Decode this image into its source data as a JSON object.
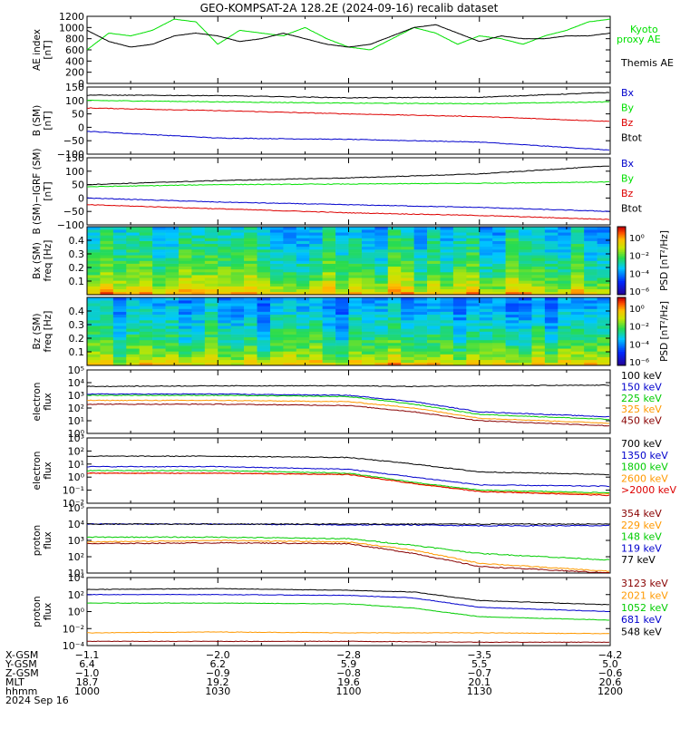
{
  "title": "GEO-KOMPSAT-2A 128.2E (2024-09-16) recalib dataset",
  "chart_data": [
    {
      "type": "line",
      "ylabel": "AE index [nT]",
      "yticks": [
        "0",
        "200",
        "400",
        "600",
        "800",
        "1000",
        "1200"
      ],
      "ylim": [
        0,
        1200
      ],
      "series": [
        {
          "name": "Kyoto proxy AE",
          "label_lines": [
            "Kyoto",
            "proxy AE"
          ],
          "color": "#00e000",
          "x": [
            1000,
            1005,
            1010,
            1015,
            1020,
            1025,
            1030,
            1035,
            1040,
            1045,
            1050,
            1055,
            1100,
            1105,
            1110,
            1115,
            1120,
            1125,
            1130,
            1135,
            1140,
            1145,
            1150,
            1155,
            1200
          ],
          "values": [
            600,
            900,
            850,
            950,
            1150,
            1100,
            700,
            950,
            900,
            850,
            1000,
            800,
            650,
            600,
            800,
            1000,
            900,
            700,
            850,
            800,
            700,
            850,
            950,
            1100,
            1150
          ]
        },
        {
          "name": "Themis AE",
          "color": "#000000",
          "x": [
            1000,
            1005,
            1010,
            1015,
            1020,
            1025,
            1030,
            1035,
            1040,
            1045,
            1050,
            1055,
            1100,
            1105,
            1110,
            1115,
            1120,
            1125,
            1130,
            1135,
            1140,
            1145,
            1150,
            1155,
            1200
          ],
          "values": [
            950,
            750,
            650,
            700,
            850,
            900,
            850,
            750,
            800,
            900,
            800,
            700,
            650,
            700,
            850,
            1000,
            1050,
            900,
            750,
            850,
            800,
            800,
            850,
            850,
            900
          ]
        }
      ]
    },
    {
      "type": "line",
      "ylabel": "B (SM) [nT]",
      "yticks": [
        "−100",
        "−50",
        "0",
        "50",
        "100",
        "150"
      ],
      "ylim": [
        -100,
        150
      ],
      "series": [
        {
          "name": "Bx",
          "color": "#0000cc",
          "x": [
            1000,
            1030,
            1100,
            1130,
            1200
          ],
          "values": [
            -15,
            -40,
            -45,
            -55,
            -85
          ]
        },
        {
          "name": "By",
          "color": "#00e000",
          "x": [
            1000,
            1030,
            1100,
            1130,
            1200
          ],
          "values": [
            100,
            95,
            90,
            88,
            95
          ]
        },
        {
          "name": "Bz",
          "color": "#dd0000",
          "x": [
            1000,
            1030,
            1100,
            1130,
            1200
          ],
          "values": [
            72,
            62,
            50,
            40,
            22
          ]
        },
        {
          "name": "Btot",
          "color": "#000000",
          "x": [
            1000,
            1030,
            1100,
            1130,
            1200
          ],
          "values": [
            120,
            118,
            110,
            112,
            130
          ]
        }
      ]
    },
    {
      "type": "line",
      "ylabel": "B (SM)−IGRF (SM) [nT]",
      "yticks": [
        "−100",
        "−50",
        "0",
        "50",
        "100",
        "150"
      ],
      "ylim": [
        -100,
        150
      ],
      "series": [
        {
          "name": "Bx",
          "color": "#0000cc",
          "x": [
            1000,
            1030,
            1100,
            1130,
            1200
          ],
          "values": [
            0,
            -15,
            -25,
            -35,
            -50
          ]
        },
        {
          "name": "By",
          "color": "#00e000",
          "x": [
            1000,
            1030,
            1100,
            1130,
            1200
          ],
          "values": [
            42,
            50,
            52,
            55,
            60
          ]
        },
        {
          "name": "Bz",
          "color": "#dd0000",
          "x": [
            1000,
            1030,
            1100,
            1130,
            1200
          ],
          "values": [
            -25,
            -40,
            -55,
            -65,
            -80
          ]
        },
        {
          "name": "Btot",
          "color": "#000000",
          "x": [
            1000,
            1030,
            1100,
            1130,
            1200
          ],
          "values": [
            50,
            65,
            75,
            90,
            120
          ]
        }
      ]
    },
    {
      "type": "heatmap",
      "ylabel": "Bx (SM) freq [Hz]",
      "yticks": [
        "0.1",
        "0.2",
        "0.3",
        "0.4"
      ],
      "ylim": [
        0,
        0.5
      ],
      "colorbar_label": "PSD [nT²/Hz]",
      "colorbar_ticks": [
        "10⁰",
        "10⁻²",
        "10⁻⁴",
        "10⁻⁶"
      ]
    },
    {
      "type": "heatmap",
      "ylabel": "Bz (SM) freq [Hz]",
      "yticks": [
        "0.1",
        "0.2",
        "0.3",
        "0.4"
      ],
      "ylim": [
        0,
        0.5
      ],
      "colorbar_label": "PSD [nT²/Hz]",
      "colorbar_ticks": [
        "10⁰",
        "10⁻²",
        "10⁻⁴",
        "10⁻⁶"
      ]
    },
    {
      "type": "line",
      "log": true,
      "ylabel": "electron flux",
      "yticks": [
        "10⁰",
        "10¹",
        "10²",
        "10³",
        "10⁴",
        "10⁵"
      ],
      "ylim_exp": [
        0,
        5
      ],
      "series": [
        {
          "name": "100 keV",
          "color": "#000000",
          "x": [
            1000,
            1030,
            1100,
            1115,
            1130,
            1200
          ],
          "values_log10": [
            3.7,
            3.75,
            3.75,
            3.7,
            3.75,
            3.8
          ]
        },
        {
          "name": "150 keV",
          "color": "#0000cc",
          "x": [
            1000,
            1030,
            1100,
            1115,
            1130,
            1200
          ],
          "values_log10": [
            3.1,
            3.1,
            3.0,
            2.5,
            1.7,
            1.3
          ]
        },
        {
          "name": "225 keV",
          "color": "#00cc00",
          "x": [
            1000,
            1030,
            1100,
            1115,
            1130,
            1200
          ],
          "values_log10": [
            3.0,
            3.0,
            2.9,
            2.3,
            1.5,
            1.1
          ]
        },
        {
          "name": "325 keV",
          "color": "#ff9900",
          "x": [
            1000,
            1030,
            1100,
            1115,
            1130,
            1200
          ],
          "values_log10": [
            2.6,
            2.6,
            2.5,
            2.0,
            1.2,
            0.8
          ]
        },
        {
          "name": "450 keV",
          "color": "#880000",
          "x": [
            1000,
            1030,
            1100,
            1115,
            1130,
            1200
          ],
          "values_log10": [
            2.3,
            2.3,
            2.2,
            1.7,
            1.0,
            0.6
          ]
        }
      ]
    },
    {
      "type": "line",
      "log": true,
      "ylabel": "electron flux",
      "yticks": [
        "10⁻²",
        "10⁻¹",
        "10⁰",
        "10¹",
        "10²",
        "10³"
      ],
      "ylim_exp": [
        -2,
        3
      ],
      "series": [
        {
          "name": "700 keV",
          "color": "#000000",
          "x": [
            1000,
            1030,
            1100,
            1115,
            1130,
            1200
          ],
          "values_log10": [
            1.6,
            1.6,
            1.5,
            1.0,
            0.4,
            0.2
          ]
        },
        {
          "name": "1350 keV",
          "color": "#0000cc",
          "x": [
            1000,
            1030,
            1100,
            1115,
            1130,
            1200
          ],
          "values_log10": [
            0.8,
            0.8,
            0.6,
            0.0,
            -0.6,
            -0.7
          ]
        },
        {
          "name": "1800 keV",
          "color": "#00cc00",
          "x": [
            1000,
            1030,
            1100,
            1115,
            1130,
            1200
          ],
          "values_log10": [
            0.5,
            0.5,
            0.3,
            -0.4,
            -1.0,
            -1.2
          ]
        },
        {
          "name": "2600 keV",
          "color": "#ff9900",
          "x": [
            1000,
            1030,
            1100,
            1115,
            1130,
            1200
          ],
          "values_log10": [
            0.3,
            0.3,
            0.2,
            -0.5,
            -1.1,
            -1.3
          ]
        },
        {
          "name": ">2000 keV",
          "color": "#dd0000",
          "x": [
            1000,
            1030,
            1100,
            1115,
            1130,
            1200
          ],
          "values_log10": [
            0.3,
            0.3,
            0.2,
            -0.5,
            -1.1,
            -1.4
          ]
        }
      ]
    },
    {
      "type": "line",
      "log": true,
      "ylabel": "proton flux",
      "yticks": [
        "10¹",
        "10²",
        "10³",
        "10⁴",
        "10⁵"
      ],
      "ylim_exp": [
        1,
        5
      ],
      "series": [
        {
          "name": "354 keV",
          "color": "#880000",
          "x": [
            1000,
            1030,
            1100,
            1115,
            1130,
            1200
          ],
          "values_log10": [
            2.8,
            2.85,
            2.8,
            2.2,
            1.4,
            1.0
          ]
        },
        {
          "name": "229 keV",
          "color": "#ff9900",
          "x": [
            1000,
            1030,
            1100,
            1115,
            1130,
            1200
          ],
          "values_log10": [
            2.9,
            3.0,
            2.9,
            2.4,
            1.6,
            1.1
          ]
        },
        {
          "name": "148 keV",
          "color": "#00cc00",
          "x": [
            1000,
            1030,
            1100,
            1115,
            1130,
            1200
          ],
          "values_log10": [
            3.2,
            3.2,
            3.1,
            2.7,
            2.2,
            1.8
          ]
        },
        {
          "name": "119 keV",
          "color": "#0000cc",
          "x": [
            1000,
            1030,
            1100,
            1115,
            1130,
            1200
          ],
          "values_log10": [
            4.0,
            4.0,
            3.95,
            3.95,
            3.9,
            3.9
          ]
        },
        {
          "name": "77 keV",
          "color": "#000000",
          "x": [
            1000,
            1030,
            1100,
            1115,
            1130,
            1200
          ],
          "values_log10": [
            4.0,
            4.0,
            4.0,
            4.0,
            4.0,
            4.0
          ]
        }
      ]
    },
    {
      "type": "line",
      "log": true,
      "ylabel": "proton flux",
      "yticks": [
        "10⁻⁴",
        "10⁻²",
        "10⁰",
        "10²",
        "10⁴"
      ],
      "ylim_exp": [
        -4,
        4
      ],
      "series": [
        {
          "name": "3123 keV",
          "color": "#880000",
          "x": [
            1000,
            1030,
            1100,
            1130,
            1200
          ],
          "values_log10": [
            -3.5,
            -3.5,
            -3.5,
            -3.6,
            -3.6
          ]
        },
        {
          "name": "2021 keV",
          "color": "#ff9900",
          "x": [
            1000,
            1030,
            1100,
            1130,
            1200
          ],
          "values_log10": [
            -2.5,
            -2.4,
            -2.5,
            -2.5,
            -2.6
          ]
        },
        {
          "name": "1052 keV",
          "color": "#00cc00",
          "x": [
            1000,
            1030,
            1100,
            1115,
            1130,
            1200
          ],
          "values_log10": [
            1.0,
            1.0,
            0.9,
            0.4,
            -0.6,
            -1.0
          ]
        },
        {
          "name": "681 keV",
          "color": "#0000cc",
          "x": [
            1000,
            1030,
            1100,
            1115,
            1130,
            1200
          ],
          "values_log10": [
            2.0,
            2.0,
            1.9,
            1.6,
            0.5,
            0.0
          ]
        },
        {
          "name": "548 keV",
          "color": "#000000",
          "x": [
            1000,
            1030,
            1100,
            1115,
            1130,
            1200
          ],
          "values_log10": [
            2.6,
            2.7,
            2.5,
            2.3,
            1.3,
            0.8
          ]
        }
      ]
    }
  ],
  "orbit_labels": [
    {
      "label": "X-GSM",
      "values": [
        "−1.1",
        "−2.0",
        "−2.8",
        "−3.5",
        "−4.2"
      ]
    },
    {
      "label": "Y-GSM",
      "values": [
        "6.4",
        "6.2",
        "5.9",
        "5.5",
        "5.0"
      ]
    },
    {
      "label": "Z-GSM",
      "values": [
        "−1.0",
        "−0.9",
        "−0.8",
        "−0.7",
        "−0.6"
      ]
    },
    {
      "label": "MLT",
      "values": [
        "18.7",
        "19.2",
        "19.6",
        "20.1",
        "20.6"
      ]
    },
    {
      "label": "hhmm",
      "values": [
        "1000",
        "1030",
        "1100",
        "1130",
        "1200"
      ]
    }
  ],
  "date_label": "2024 Sep 16",
  "colors": {
    "axis": "#000000",
    "background": "#ffffff"
  }
}
